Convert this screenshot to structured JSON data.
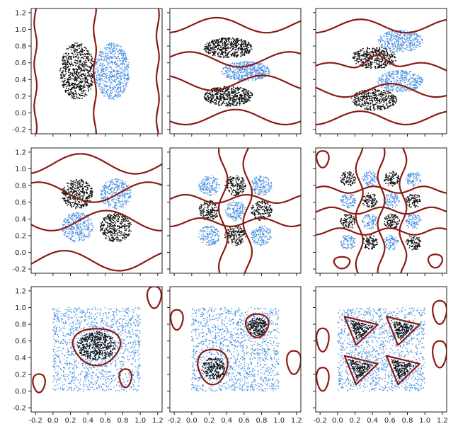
{
  "colors": {
    "class_a": "#111111",
    "class_b": "#4a90e2",
    "boundary": "#8b1a12",
    "frame": "#222222"
  },
  "chart_data": [
    {
      "type": "scatter",
      "panel": "row1-col1",
      "xlim": [
        -0.25,
        1.25
      ],
      "ylim": [
        -0.25,
        1.25
      ],
      "ytick_labels": [
        "-0.2",
        "0.0",
        "0.2",
        "0.4",
        "0.6",
        "0.8",
        "1.0",
        "1.2"
      ],
      "xtick_labels": [],
      "clusters": [
        {
          "class": "black",
          "shape": "ellipse",
          "cx": 0.28,
          "cy": 0.5,
          "rx": 0.2,
          "ry": 0.34,
          "n": 700
        },
        {
          "class": "blue",
          "shape": "ellipse",
          "cx": 0.68,
          "cy": 0.5,
          "rx": 0.2,
          "ry": 0.34,
          "n": 700
        }
      ],
      "boundary_shape": "vertical_lines",
      "boundary_x": [
        -0.2,
        0.48,
        1.2
      ]
    },
    {
      "type": "scatter",
      "panel": "row1-col2",
      "xlim": [
        -0.25,
        1.25
      ],
      "ylim": [
        -0.25,
        1.25
      ],
      "ytick_labels": [],
      "xtick_labels": [],
      "clusters": [
        {
          "class": "black",
          "shape": "ellipse",
          "cx": 0.42,
          "cy": 0.78,
          "rx": 0.28,
          "ry": 0.12,
          "n": 500
        },
        {
          "class": "blue",
          "shape": "ellipse",
          "cx": 0.62,
          "cy": 0.5,
          "rx": 0.28,
          "ry": 0.12,
          "n": 500
        },
        {
          "class": "black",
          "shape": "ellipse",
          "cx": 0.42,
          "cy": 0.2,
          "rx": 0.28,
          "ry": 0.12,
          "n": 500
        }
      ],
      "boundary_shape": "horizontal_waves",
      "boundary_y": [
        1.05,
        0.64,
        0.36,
        -0.05
      ]
    },
    {
      "type": "scatter",
      "panel": "row1-col3",
      "xlim": [
        -0.25,
        1.25
      ],
      "ylim": [
        -0.25,
        1.25
      ],
      "ytick_labels": [],
      "xtick_labels": [],
      "clusters": [
        {
          "class": "blue",
          "shape": "ellipse",
          "cx": 0.72,
          "cy": 0.86,
          "rx": 0.26,
          "ry": 0.13,
          "n": 400
        },
        {
          "class": "black",
          "shape": "ellipse",
          "cx": 0.42,
          "cy": 0.66,
          "rx": 0.26,
          "ry": 0.13,
          "n": 400
        },
        {
          "class": "blue",
          "shape": "ellipse",
          "cx": 0.72,
          "cy": 0.38,
          "rx": 0.26,
          "ry": 0.13,
          "n": 400
        },
        {
          "class": "black",
          "shape": "ellipse",
          "cx": 0.42,
          "cy": 0.16,
          "rx": 0.26,
          "ry": 0.13,
          "n": 400
        }
      ],
      "boundary_shape": "bands_rotated",
      "boundary_y": [
        1.04,
        0.52,
        0.27,
        -0.06
      ]
    },
    {
      "type": "scatter",
      "panel": "row2-col1",
      "xlim": [
        -0.25,
        1.25
      ],
      "ylim": [
        -0.25,
        1.25
      ],
      "ytick_labels": [
        "-0.2",
        "0.0",
        "0.2",
        "0.4",
        "0.6",
        "0.8",
        "1.0",
        "1.2"
      ],
      "xtick_labels": [],
      "clusters": [
        {
          "class": "black",
          "shape": "disk",
          "cx": 0.28,
          "cy": 0.7,
          "r": 0.18,
          "n": 350
        },
        {
          "class": "blue",
          "shape": "disk",
          "cx": 0.72,
          "cy": 0.7,
          "r": 0.18,
          "n": 350
        },
        {
          "class": "blue",
          "shape": "disk",
          "cx": 0.28,
          "cy": 0.3,
          "r": 0.18,
          "n": 350
        },
        {
          "class": "black",
          "shape": "disk",
          "cx": 0.72,
          "cy": 0.3,
          "r": 0.18,
          "n": 350
        }
      ],
      "boundary_shape": "xor_waves",
      "boundary_y": [
        1.06,
        0.72,
        0.38,
        -0.1
      ]
    },
    {
      "type": "scatter",
      "panel": "row2-col2",
      "xlim": [
        -0.25,
        1.25
      ],
      "ylim": [
        -0.25,
        1.25
      ],
      "ytick_labels": [],
      "xtick_labels": [],
      "clusters": [
        {
          "class": "blue",
          "shape": "disk",
          "cx": 0.2,
          "cy": 0.8,
          "r": 0.12,
          "n": 160
        },
        {
          "class": "black",
          "shape": "disk",
          "cx": 0.5,
          "cy": 0.8,
          "r": 0.12,
          "n": 160
        },
        {
          "class": "blue",
          "shape": "disk",
          "cx": 0.8,
          "cy": 0.8,
          "r": 0.12,
          "n": 160
        },
        {
          "class": "black",
          "shape": "disk",
          "cx": 0.2,
          "cy": 0.5,
          "r": 0.12,
          "n": 160
        },
        {
          "class": "blue",
          "shape": "disk",
          "cx": 0.5,
          "cy": 0.5,
          "r": 0.12,
          "n": 160
        },
        {
          "class": "black",
          "shape": "disk",
          "cx": 0.8,
          "cy": 0.5,
          "r": 0.12,
          "n": 160
        },
        {
          "class": "blue",
          "shape": "disk",
          "cx": 0.2,
          "cy": 0.2,
          "r": 0.12,
          "n": 160
        },
        {
          "class": "black",
          "shape": "disk",
          "cx": 0.5,
          "cy": 0.2,
          "r": 0.12,
          "n": 160
        },
        {
          "class": "blue",
          "shape": "disk",
          "cx": 0.8,
          "cy": 0.2,
          "r": 0.12,
          "n": 160
        }
      ],
      "boundary_shape": "checker3"
    },
    {
      "type": "scatter",
      "panel": "row2-col3",
      "xlim": [
        -0.25,
        1.25
      ],
      "ylim": [
        -0.25,
        1.25
      ],
      "ytick_labels": [],
      "xtick_labels": [],
      "clusters": [
        {
          "class": "black",
          "shape": "disk",
          "cx": 0.12,
          "cy": 0.88,
          "r": 0.09,
          "n": 90
        },
        {
          "class": "blue",
          "shape": "disk",
          "cx": 0.37,
          "cy": 0.88,
          "r": 0.09,
          "n": 90
        },
        {
          "class": "black",
          "shape": "disk",
          "cx": 0.62,
          "cy": 0.88,
          "r": 0.09,
          "n": 90
        },
        {
          "class": "blue",
          "shape": "disk",
          "cx": 0.87,
          "cy": 0.88,
          "r": 0.09,
          "n": 90
        },
        {
          "class": "blue",
          "shape": "disk",
          "cx": 0.12,
          "cy": 0.62,
          "r": 0.09,
          "n": 90
        },
        {
          "class": "black",
          "shape": "disk",
          "cx": 0.37,
          "cy": 0.62,
          "r": 0.09,
          "n": 90
        },
        {
          "class": "blue",
          "shape": "disk",
          "cx": 0.62,
          "cy": 0.62,
          "r": 0.09,
          "n": 90
        },
        {
          "class": "black",
          "shape": "disk",
          "cx": 0.87,
          "cy": 0.62,
          "r": 0.09,
          "n": 90
        },
        {
          "class": "black",
          "shape": "disk",
          "cx": 0.12,
          "cy": 0.37,
          "r": 0.09,
          "n": 90
        },
        {
          "class": "blue",
          "shape": "disk",
          "cx": 0.37,
          "cy": 0.37,
          "r": 0.09,
          "n": 90
        },
        {
          "class": "black",
          "shape": "disk",
          "cx": 0.62,
          "cy": 0.37,
          "r": 0.09,
          "n": 90
        },
        {
          "class": "blue",
          "shape": "disk",
          "cx": 0.87,
          "cy": 0.37,
          "r": 0.09,
          "n": 90
        },
        {
          "class": "blue",
          "shape": "disk",
          "cx": 0.12,
          "cy": 0.12,
          "r": 0.09,
          "n": 90
        },
        {
          "class": "black",
          "shape": "disk",
          "cx": 0.37,
          "cy": 0.12,
          "r": 0.09,
          "n": 90
        },
        {
          "class": "blue",
          "shape": "disk",
          "cx": 0.62,
          "cy": 0.12,
          "r": 0.09,
          "n": 90
        },
        {
          "class": "black",
          "shape": "disk",
          "cx": 0.87,
          "cy": 0.12,
          "r": 0.09,
          "n": 90
        }
      ],
      "boundary_shape": "checker4"
    },
    {
      "type": "scatter",
      "panel": "row3-col1",
      "xlim": [
        -0.25,
        1.25
      ],
      "ylim": [
        -0.25,
        1.25
      ],
      "ytick_labels": [
        "-0.2",
        "0.0",
        "0.2",
        "0.4",
        "0.6",
        "0.8",
        "1.0",
        "1.2"
      ],
      "xtick_labels": [
        "-0.2",
        "0.0",
        "0.2",
        "0.4",
        "0.6",
        "0.8",
        "1.0",
        "1.2"
      ],
      "clusters": [
        {
          "class": "blue",
          "shape": "square",
          "x0": 0.0,
          "x1": 1.0,
          "y0": 0.0,
          "y1": 1.0,
          "n": 1400
        },
        {
          "class": "black",
          "shape": "ellipse",
          "cx": 0.5,
          "cy": 0.54,
          "rx": 0.22,
          "ry": 0.17,
          "n": 450
        }
      ],
      "boundary_shape": "blobs",
      "blobs": [
        {
          "cx": 0.5,
          "cy": 0.54,
          "rx": 0.27,
          "ry": 0.22
        },
        {
          "cx": 0.83,
          "cy": 0.16,
          "rx": 0.07,
          "ry": 0.11
        },
        {
          "cx": 1.16,
          "cy": 1.13,
          "rx": 0.08,
          "ry": 0.13
        },
        {
          "cx": -0.16,
          "cy": 0.1,
          "rx": 0.07,
          "ry": 0.11
        }
      ]
    },
    {
      "type": "scatter",
      "panel": "row3-col2",
      "xlim": [
        -0.25,
        1.25
      ],
      "ylim": [
        -0.25,
        1.25
      ],
      "ytick_labels": [],
      "xtick_labels": [
        "-0.2",
        "0.0",
        "0.2",
        "0.4",
        "0.6",
        "0.8",
        "1.0",
        "1.2"
      ],
      "clusters": [
        {
          "class": "blue",
          "shape": "square",
          "x0": 0.0,
          "x1": 1.0,
          "y0": 0.0,
          "y1": 1.0,
          "n": 1400
        },
        {
          "class": "black",
          "shape": "disk",
          "cx": 0.25,
          "cy": 0.27,
          "r": 0.13,
          "n": 220
        },
        {
          "class": "black",
          "shape": "disk",
          "cx": 0.75,
          "cy": 0.77,
          "r": 0.11,
          "n": 200
        }
      ],
      "boundary_shape": "blobs",
      "blobs": [
        {
          "cx": 0.24,
          "cy": 0.3,
          "rx": 0.17,
          "ry": 0.21
        },
        {
          "cx": 0.75,
          "cy": 0.79,
          "rx": 0.13,
          "ry": 0.14
        },
        {
          "cx": 1.17,
          "cy": 0.35,
          "rx": 0.08,
          "ry": 0.14
        },
        {
          "cx": -0.17,
          "cy": 0.86,
          "rx": 0.07,
          "ry": 0.12
        }
      ]
    },
    {
      "type": "scatter",
      "panel": "row3-col3",
      "xlim": [
        -0.25,
        1.25
      ],
      "ylim": [
        -0.25,
        1.25
      ],
      "ytick_labels": [],
      "xtick_labels": [
        "-0.2",
        "0.0",
        "0.2",
        "0.4",
        "0.6",
        "0.8",
        "1.0",
        "1.2"
      ],
      "clusters": [
        {
          "class": "blue",
          "shape": "square",
          "x0": 0.0,
          "x1": 1.0,
          "y0": 0.0,
          "y1": 1.0,
          "n": 1400
        },
        {
          "class": "black",
          "shape": "triangle",
          "cx": 0.27,
          "cy": 0.74,
          "s": 0.14,
          "n": 160
        },
        {
          "class": "black",
          "shape": "triangle",
          "cx": 0.75,
          "cy": 0.74,
          "s": 0.14,
          "n": 160
        },
        {
          "class": "black",
          "shape": "triangle",
          "cx": 0.27,
          "cy": 0.27,
          "s": 0.14,
          "n": 160
        },
        {
          "class": "black",
          "shape": "triangle",
          "cx": 0.75,
          "cy": 0.27,
          "s": 0.14,
          "n": 160
        }
      ],
      "boundary_shape": "triangles",
      "tri_size": 0.19,
      "blobs": [
        {
          "cx": -0.17,
          "cy": 0.62,
          "rx": 0.07,
          "ry": 0.14
        },
        {
          "cx": -0.17,
          "cy": 0.15,
          "rx": 0.07,
          "ry": 0.14
        },
        {
          "cx": 1.17,
          "cy": 0.45,
          "rx": 0.08,
          "ry": 0.16
        },
        {
          "cx": 1.17,
          "cy": 0.95,
          "rx": 0.08,
          "ry": 0.14
        }
      ]
    }
  ]
}
